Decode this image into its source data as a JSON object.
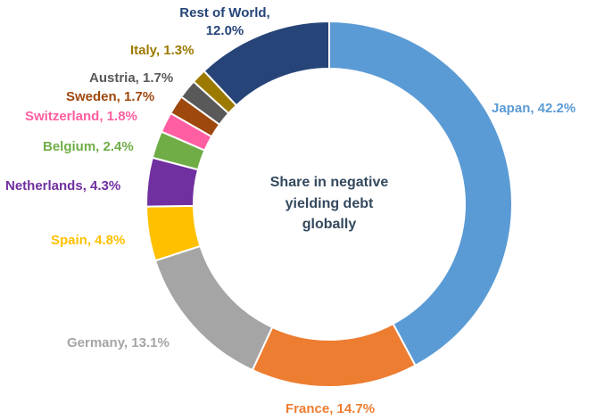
{
  "chart_data": {
    "type": "pie",
    "variant": "donut",
    "center_text": [
      "Share in negative",
      "yielding debt",
      "globally"
    ],
    "unit": "%",
    "slices": [
      {
        "label": "Japan",
        "value": 42.2,
        "display": "Japan, 42.2%",
        "color": "#5b9bd5"
      },
      {
        "label": "France",
        "value": 14.7,
        "display": "France, 14.7%",
        "color": "#ed7d31"
      },
      {
        "label": "Germany",
        "value": 13.1,
        "display": "Germany, 13.1%",
        "color": "#a5a5a5"
      },
      {
        "label": "Spain",
        "value": 4.8,
        "display": "Spain, 4.8%",
        "color": "#ffc000"
      },
      {
        "label": "Netherlands",
        "value": 4.3,
        "display": "Netherlands, 4.3%",
        "color": "#7030a0"
      },
      {
        "label": "Belgium",
        "value": 2.4,
        "display": "Belgium, 2.4%",
        "color": "#70ad47"
      },
      {
        "label": "Switzerland",
        "value": 1.8,
        "display": "Switzerland, 1.8%",
        "color": "#ff5fa2"
      },
      {
        "label": "Sweden",
        "value": 1.7,
        "display": "Sweden, 1.7%",
        "color": "#9e480e"
      },
      {
        "label": "Austria",
        "value": 1.7,
        "display": "Austria, 1.7%",
        "color": "#595959"
      },
      {
        "label": "Italy",
        "value": 1.3,
        "display": "Italy, 1.3%",
        "color": "#9c7a00"
      },
      {
        "label": "Rest of World",
        "value": 12.0,
        "display": [
          "Rest of World,",
          "12.0%"
        ],
        "color": "#264478"
      }
    ]
  }
}
